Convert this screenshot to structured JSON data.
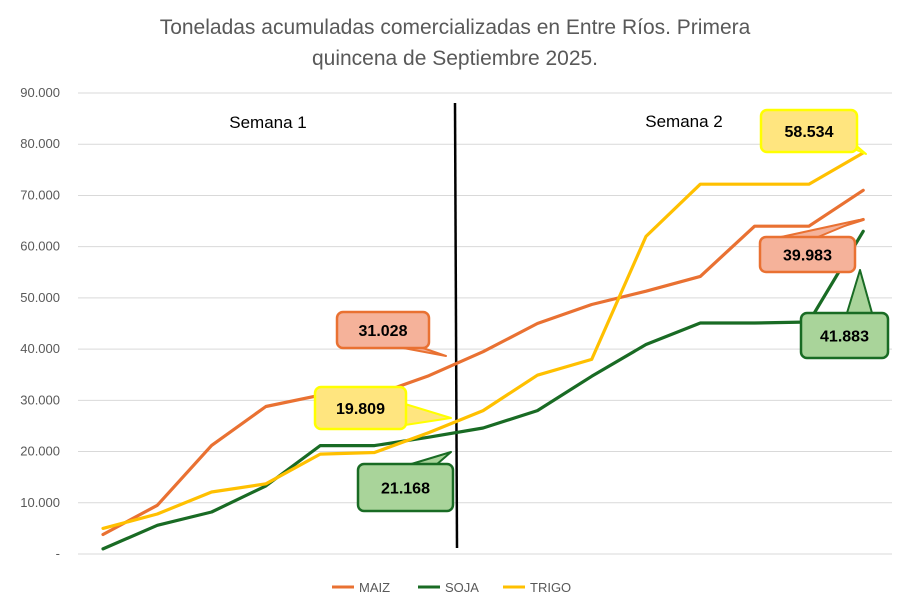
{
  "chart_data": {
    "type": "line",
    "title_line1": "Toneladas acumuladas comercializadas en Entre Ríos. Primera",
    "title_line2": "quincena de Septiembre 2025.",
    "ylim": [
      0,
      90000
    ],
    "yticks": [
      {
        "value": 0,
        "label": "-"
      },
      {
        "value": 10000,
        "label": "10.000"
      },
      {
        "value": 20000,
        "label": "20.000"
      },
      {
        "value": 30000,
        "label": "30.000"
      },
      {
        "value": 40000,
        "label": "40.000"
      },
      {
        "value": 50000,
        "label": "50.000"
      },
      {
        "value": 60000,
        "label": "60.000"
      },
      {
        "value": 70000,
        "label": "70.000"
      },
      {
        "value": 80000,
        "label": "80.000"
      },
      {
        "value": 90000,
        "label": "90.000"
      }
    ],
    "grid": true,
    "legend_position": "bottom",
    "n_points": 15,
    "series": [
      {
        "name": "MAIZ",
        "color": "#E97132",
        "values": [
          3800,
          9500,
          21200,
          28800,
          31000,
          31028,
          34800,
          39500,
          45000,
          48700,
          51300,
          54200,
          64000,
          64000,
          71000
        ]
      },
      {
        "name": "SOJA",
        "color": "#196B24",
        "values": [
          1000,
          5600,
          8200,
          13300,
          21168,
          21168,
          22800,
          24600,
          28000,
          34700,
          40900,
          45100,
          45100,
          45300,
          63000
        ]
      },
      {
        "name": "TRIGO",
        "color": "#FFC000",
        "values": [
          5000,
          7800,
          12100,
          13700,
          19500,
          19809,
          23700,
          28000,
          34900,
          38000,
          62000,
          72200,
          72200,
          72200,
          78300
        ]
      }
    ],
    "extra_segment": {
      "series": "MAIZ",
      "from_index": 13,
      "from_value": 62000,
      "to_index": 14,
      "to_value": 65300
    },
    "annotations": [
      {
        "text": "Semana 1"
      },
      {
        "text": "Semana 2"
      }
    ],
    "callouts": [
      {
        "text": "31.028",
        "series": "MAIZ",
        "fill": "#F5B29A",
        "stroke": "#E97132"
      },
      {
        "text": "19.809",
        "series": "TRIGO",
        "fill": "#FFE57F",
        "stroke": "#FFFF00"
      },
      {
        "text": "21.168",
        "series": "SOJA",
        "fill": "#A9D49A",
        "stroke": "#196B24"
      },
      {
        "text": "58.534",
        "series": "TRIGO",
        "fill": "#FFE57F",
        "stroke": "#FFFF00"
      },
      {
        "text": "39.983",
        "series": "MAIZ",
        "fill": "#F5B29A",
        "stroke": "#E97132"
      },
      {
        "text": "41.883",
        "series": "SOJA",
        "fill": "#A9D49A",
        "stroke": "#196B24"
      }
    ]
  }
}
